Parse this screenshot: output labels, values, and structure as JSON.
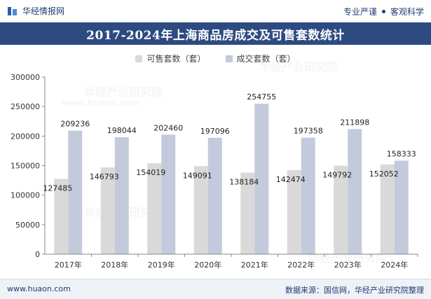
{
  "header": {
    "brand": "华经情报网",
    "slogan_left": "专业严谨",
    "slogan_right": "客观科学"
  },
  "colors": {
    "series_available": "#d9d9d9",
    "series_sold": "#c2cadb",
    "title_bg": "#2d4b81",
    "brand_text": "#1f3b73"
  },
  "chart_data": {
    "type": "bar",
    "title": "2017-2024年上海商品房成交及可售套数统计",
    "categories": [
      "2017年",
      "2018年",
      "2019年",
      "2020年",
      "2021年",
      "2022年",
      "2023年",
      "2024年"
    ],
    "series": [
      {
        "name": "可售套数（套）",
        "values": [
          127485,
          146793,
          154019,
          149091,
          138184,
          142474,
          149792,
          152052
        ]
      },
      {
        "name": "成交套数（套）",
        "values": [
          209236,
          198044,
          202460,
          197096,
          254755,
          197358,
          211898,
          158333
        ]
      }
    ],
    "yticks": [
      "0",
      "50000",
      "100000",
      "150000",
      "200000",
      "250000",
      "300000"
    ],
    "ylim": [
      0,
      300000
    ],
    "xlabel": "",
    "ylabel": "",
    "legend_position": "top",
    "grid": false
  },
  "watermarks": {
    "brand_text": "华经产业研究院",
    "site_text": "www.huaon.com"
  },
  "footer": {
    "website": "www.huaon.com",
    "source": "数据来源：国信网，华经产业研究院整理"
  }
}
